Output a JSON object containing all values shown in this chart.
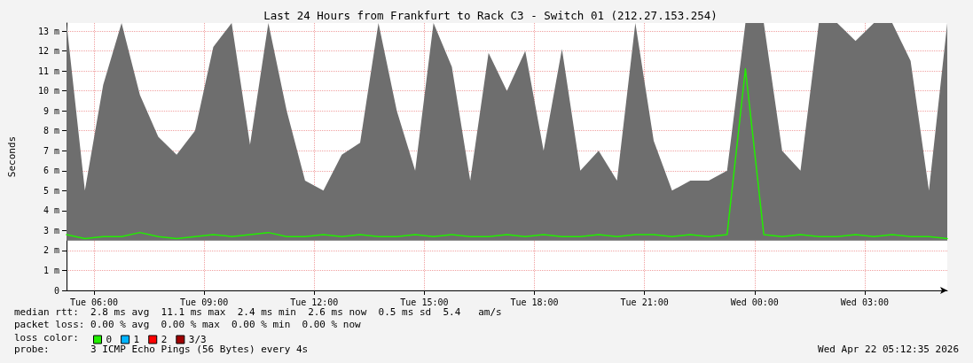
{
  "chart_data": {
    "type": "line",
    "title": "Last 24 Hours from Frankfurt to Rack C3 - Switch 01 (212.27.153.254)",
    "ylabel": "Seconds",
    "legend_title": "loss color:",
    "legend": "bottom left",
    "grid": true,
    "marker": "none",
    "line_style": "solid",
    "x": [
      "2026-04-21T05:15",
      "2026-04-21T05:45",
      "2026-04-21T06:15",
      "2026-04-21T06:45",
      "2026-04-21T07:15",
      "2026-04-21T07:45",
      "2026-04-21T08:15",
      "2026-04-21T08:45",
      "2026-04-21T09:15",
      "2026-04-21T09:45",
      "2026-04-21T10:15",
      "2026-04-21T10:45",
      "2026-04-21T11:15",
      "2026-04-21T11:45",
      "2026-04-21T12:15",
      "2026-04-21T12:45",
      "2026-04-21T13:15",
      "2026-04-21T13:45",
      "2026-04-21T14:15",
      "2026-04-21T14:45",
      "2026-04-21T15:15",
      "2026-04-21T15:45",
      "2026-04-21T16:15",
      "2026-04-21T16:45",
      "2026-04-21T17:15",
      "2026-04-21T17:45",
      "2026-04-21T18:15",
      "2026-04-21T18:45",
      "2026-04-21T19:15",
      "2026-04-21T19:45",
      "2026-04-21T20:15",
      "2026-04-21T20:45",
      "2026-04-21T21:15",
      "2026-04-21T21:45",
      "2026-04-21T22:15",
      "2026-04-21T22:45",
      "2026-04-21T23:15",
      "2026-04-21T23:45",
      "2026-04-22T00:15",
      "2026-04-22T00:45",
      "2026-04-22T01:15",
      "2026-04-22T01:45",
      "2026-04-22T02:15",
      "2026-04-22T02:45",
      "2026-04-22T03:15",
      "2026-04-22T03:45",
      "2026-04-22T04:15",
      "2026-04-22T04:45",
      "2026-04-22T05:15"
    ],
    "series": [
      {
        "name": "0",
        "color": "#22ee00",
        "values": [
          2.8,
          2.6,
          2.7,
          2.7,
          2.9,
          2.7,
          2.6,
          2.7,
          2.8,
          2.7,
          2.8,
          2.9,
          2.7,
          2.7,
          2.8,
          2.7,
          2.8,
          2.7,
          2.7,
          2.8,
          2.7,
          2.8,
          2.7,
          2.7,
          2.8,
          2.7,
          2.8,
          2.7,
          2.7,
          2.8,
          2.7,
          2.8,
          2.8,
          2.7,
          2.8,
          2.7,
          2.8,
          11.1,
          2.8,
          2.7,
          2.8,
          2.7,
          2.7,
          2.8,
          2.7,
          2.8,
          2.7,
          2.7,
          2.6
        ],
        "lower": [
          2.5,
          2.5,
          2.5,
          2.5,
          2.5,
          2.5,
          2.5,
          2.5,
          2.5,
          2.5,
          2.5,
          2.5,
          2.5,
          2.5,
          2.5,
          2.5,
          2.5,
          2.5,
          2.5,
          2.5,
          2.5,
          2.5,
          2.5,
          2.5,
          2.5,
          2.5,
          2.5,
          2.5,
          2.5,
          2.5,
          2.5,
          2.5,
          2.5,
          2.5,
          2.5,
          2.5,
          2.5,
          2.5,
          2.5,
          2.5,
          2.5,
          2.5,
          2.5,
          2.5,
          2.5,
          2.5,
          2.5,
          2.5,
          2.5
        ],
        "upper": [
          13.4,
          5,
          10.3,
          13.4,
          9.8,
          7.7,
          6.8,
          8,
          12.2,
          13.4,
          7.3,
          13.4,
          9,
          5.5,
          5,
          6.8,
          7.4,
          13.4,
          9,
          6,
          13.4,
          11.2,
          5.5,
          11.9,
          10,
          12,
          7,
          12.1,
          6,
          7,
          5.5,
          13.4,
          7.5,
          5,
          5.5,
          5.5,
          6,
          13.4,
          13.4,
          7,
          6,
          13.4,
          13.4,
          12.5,
          13.4,
          13.4,
          11.5,
          5,
          13.4
        ]
      },
      {
        "name": "1",
        "color": "#00b4ff",
        "values": [
          null,
          null,
          null,
          null,
          null,
          null,
          null,
          null,
          null,
          null,
          null,
          null,
          null,
          null,
          null,
          null,
          null,
          null,
          null,
          null,
          null,
          null,
          null,
          null,
          null,
          null,
          null,
          null,
          null,
          null,
          null,
          null,
          null,
          null,
          null,
          null,
          null,
          null,
          null,
          null,
          null,
          null,
          null,
          null,
          null,
          null,
          null,
          null,
          null
        ]
      },
      {
        "name": "2",
        "color": "#ff0000",
        "values": [
          null,
          null,
          null,
          null,
          null,
          null,
          null,
          null,
          null,
          null,
          null,
          null,
          null,
          null,
          null,
          null,
          null,
          null,
          null,
          null,
          null,
          null,
          null,
          null,
          null,
          null,
          null,
          null,
          null,
          null,
          null,
          null,
          null,
          null,
          null,
          null,
          null,
          null,
          null,
          null,
          null,
          null,
          null,
          null,
          null,
          null,
          null,
          null,
          null
        ]
      },
      {
        "name": "3/3",
        "color": "#a00000",
        "values": [
          null,
          null,
          null,
          null,
          null,
          null,
          null,
          null,
          null,
          null,
          null,
          null,
          null,
          null,
          null,
          null,
          null,
          null,
          null,
          null,
          null,
          null,
          null,
          null,
          null,
          null,
          null,
          null,
          null,
          null,
          null,
          null,
          null,
          null,
          null,
          null,
          null,
          null,
          null,
          null,
          null,
          null,
          null,
          null,
          null,
          null,
          null,
          null,
          null
        ]
      }
    ],
    "xlim": [
      "2026-04-21T05:15",
      "2026-04-22T05:15"
    ],
    "xticks": [
      {
        "value": "2026-04-21T06:00",
        "label": "Tue 06:00"
      },
      {
        "value": "2026-04-21T09:00",
        "label": "Tue 09:00"
      },
      {
        "value": "2026-04-21T12:00",
        "label": "Tue 12:00"
      },
      {
        "value": "2026-04-21T15:00",
        "label": "Tue 15:00"
      },
      {
        "value": "2026-04-21T18:00",
        "label": "Tue 18:00"
      },
      {
        "value": "2026-04-21T21:00",
        "label": "Tue 21:00"
      },
      {
        "value": "2026-04-22T00:00",
        "label": "Wed 00:00"
      },
      {
        "value": "2026-04-22T03:00",
        "label": "Wed 03:00"
      }
    ],
    "ylim": [
      0,
      13.4
    ],
    "yticks": [
      0,
      {
        "value": 1,
        "label": "1 m"
      },
      {
        "value": 2,
        "label": "2 m"
      },
      {
        "value": 3,
        "label": "3 m"
      },
      {
        "value": 4,
        "label": "4 m"
      },
      {
        "value": 5,
        "label": "5 m"
      },
      {
        "value": 6,
        "label": "6 m"
      },
      {
        "value": 7,
        "label": "7 m"
      },
      {
        "value": 8,
        "label": "8 m"
      },
      {
        "value": 9,
        "label": "9 m"
      },
      {
        "value": 10,
        "label": "10 m"
      },
      {
        "value": 11,
        "label": "11 m"
      },
      {
        "value": 12,
        "label": "12 m"
      },
      {
        "value": 13,
        "label": "13 m"
      }
    ],
    "annotations": [
      "median rtt:  2.8 ms avg  11.1 ms max  2.4 ms min  2.6 ms now  0.5 ms sd  5.4   am/s",
      "packet loss: 0.00 % avg  0.00 % max  0.00 % min  0.00 % now",
      "probe:       3 ICMP Echo Pings (56 Bytes) every 4s",
      "Wed Apr 22 05:12:35 2026"
    ]
  }
}
